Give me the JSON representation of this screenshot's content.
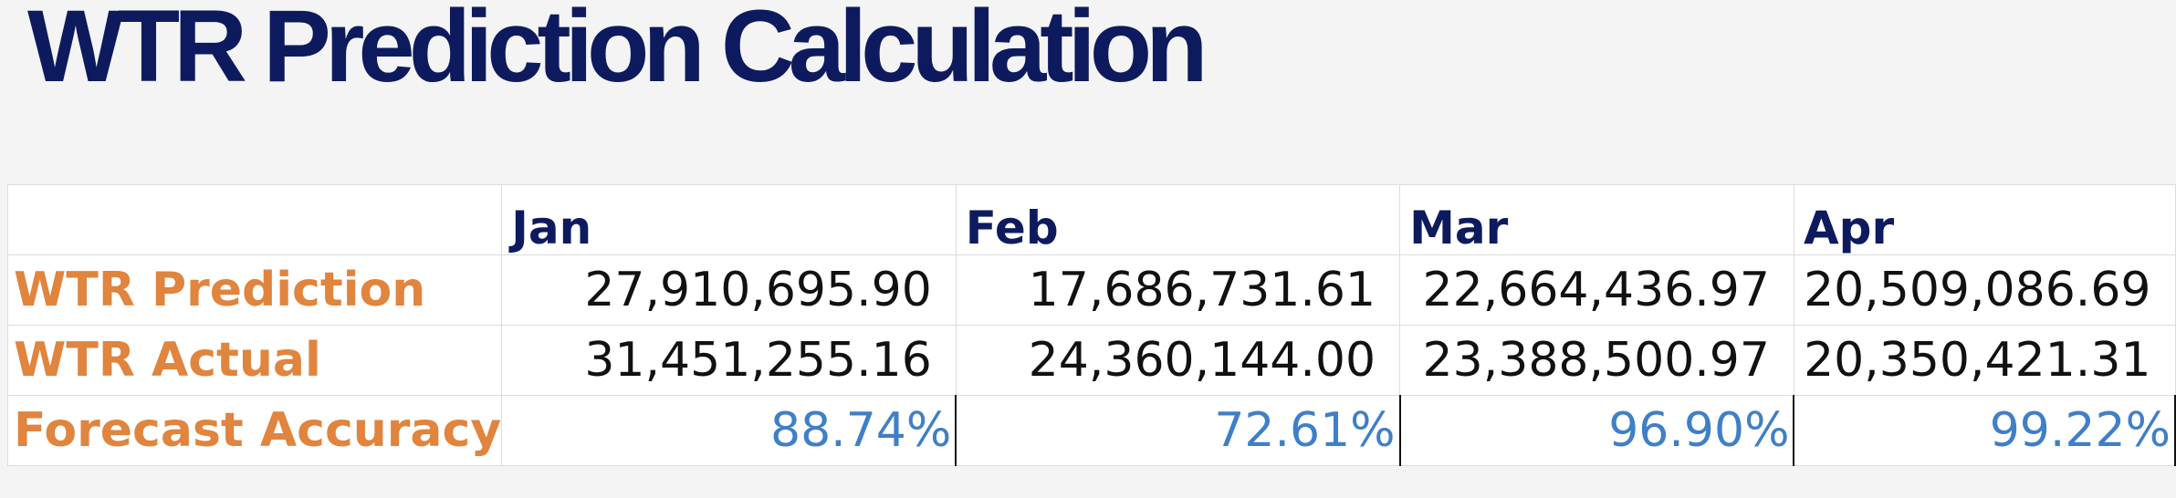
{
  "header": {
    "title": "WTR Prediction Calculation"
  },
  "table": {
    "columns": [
      "Jan",
      "Feb",
      "Mar",
      "Apr"
    ],
    "rows": [
      {
        "label": "WTR Prediction",
        "values": [
          "27,910,695.90",
          "17,686,731.61",
          "22,664,436.97",
          "20,509,086.69"
        ]
      },
      {
        "label": "WTR Actual",
        "values": [
          "31,451,255.16",
          "24,360,144.00",
          "23,388,500.97",
          "20,350,421.31"
        ]
      },
      {
        "label": "Forecast Accuracy",
        "values": [
          "88.74%",
          "72.61%",
          "96.90%",
          "99.22%"
        ]
      }
    ]
  }
}
